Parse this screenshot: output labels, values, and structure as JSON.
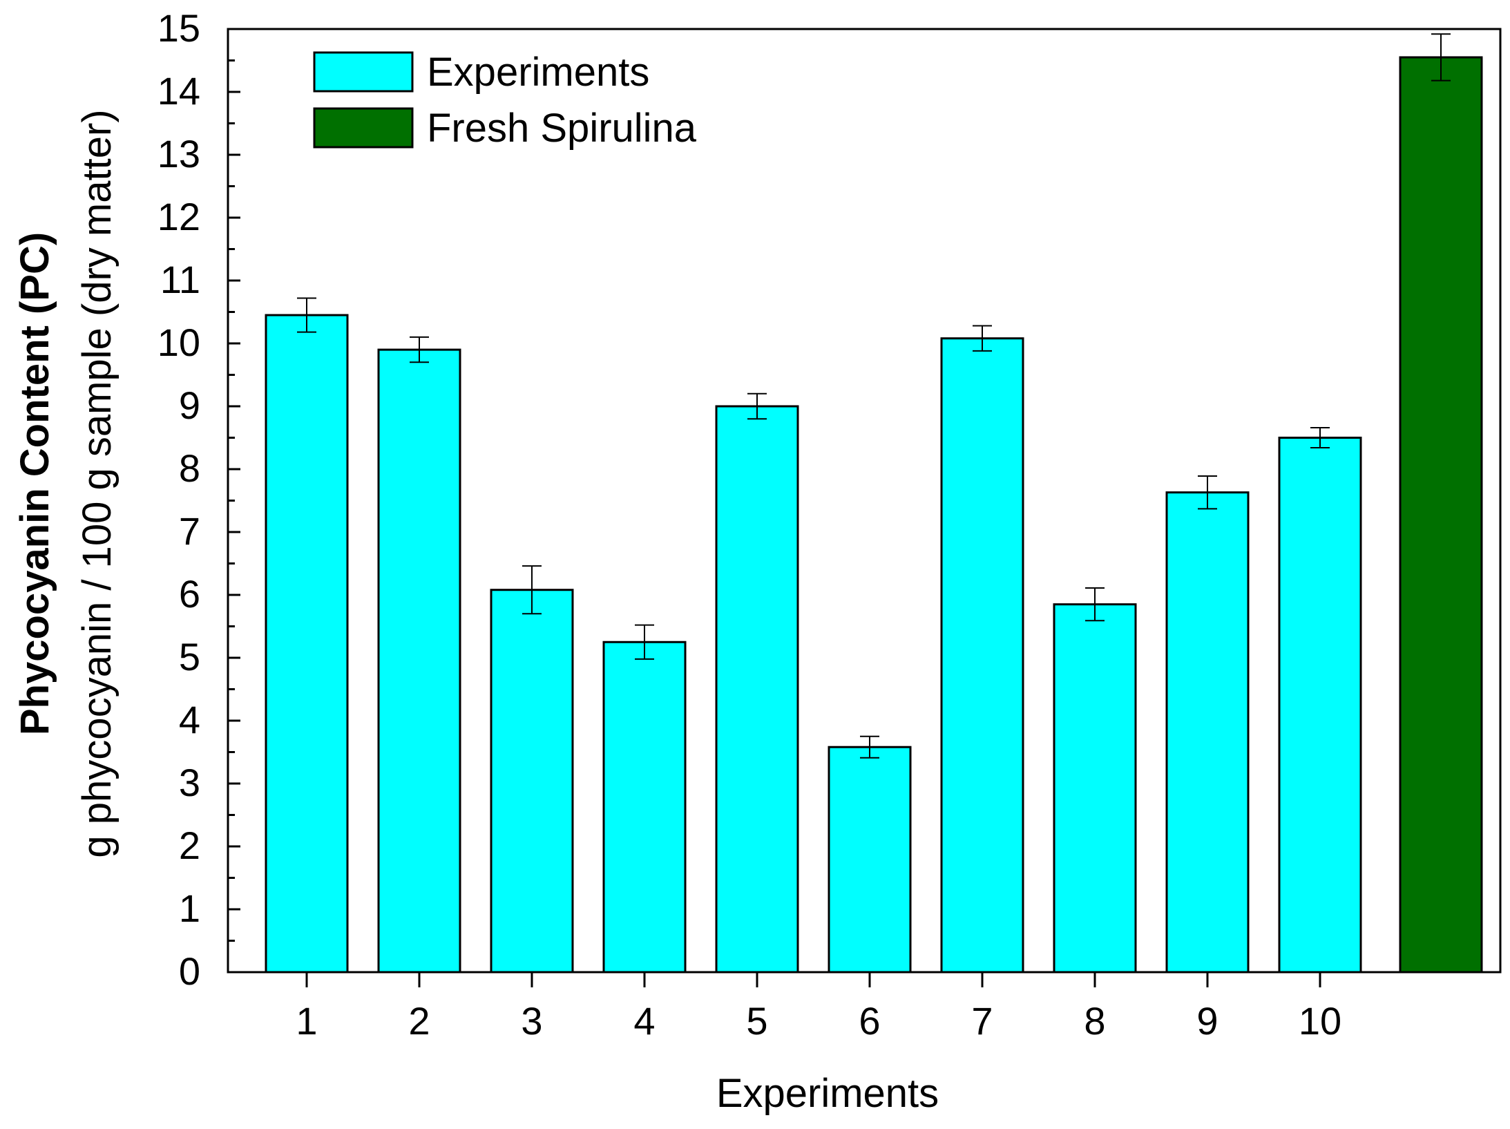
{
  "chart_data": {
    "type": "bar",
    "title": "",
    "xlabel": "Experiments",
    "ylabel_main": "Phycocyanin Content (PC)",
    "ylabel_sub": "g phycocyanin / 100 g sample (dry matter)",
    "ylim": [
      0,
      15
    ],
    "yticks": [
      "0",
      "1",
      "2",
      "3",
      "4",
      "5",
      "6",
      "7",
      "8",
      "9",
      "10",
      "11",
      "12",
      "13",
      "14",
      "15"
    ],
    "categories": [
      "1",
      "2",
      "3",
      "4",
      "5",
      "6",
      "7",
      "8",
      "9",
      "10",
      ""
    ],
    "values": [
      10.45,
      9.9,
      6.08,
      5.25,
      9.0,
      3.58,
      10.08,
      5.85,
      7.63,
      8.5,
      14.55
    ],
    "errors": [
      0.27,
      0.2,
      0.38,
      0.27,
      0.2,
      0.17,
      0.2,
      0.26,
      0.26,
      0.16,
      0.37
    ],
    "series_of_bar": [
      0,
      0,
      0,
      0,
      0,
      0,
      0,
      0,
      0,
      0,
      1
    ],
    "legend": [
      {
        "label": "Experiments",
        "color": "#00ffff"
      },
      {
        "label": "Fresh Spirulina",
        "color": "#007000"
      }
    ],
    "legend_position": "top-left",
    "grid": false
  }
}
